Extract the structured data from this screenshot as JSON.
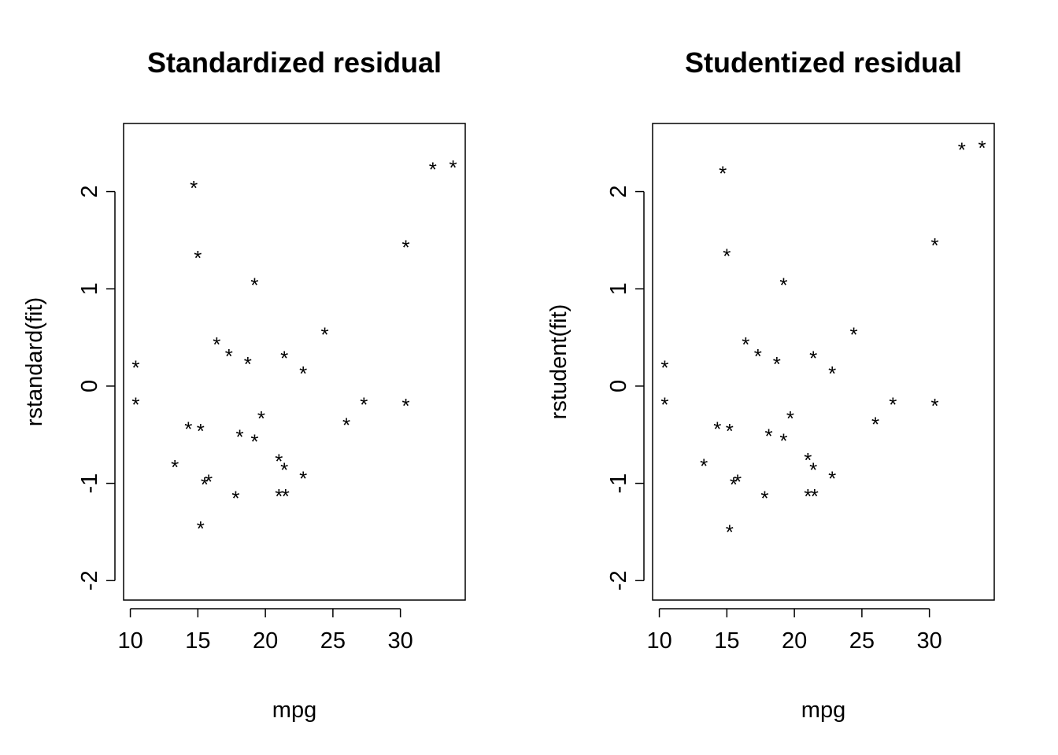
{
  "chart_data": [
    {
      "type": "scatter",
      "title": "Standardized residual",
      "xlabel": "mpg",
      "ylabel": "rstandard(fit)",
      "marker": "*",
      "xlim": [
        9.5,
        34.8
      ],
      "ylim": [
        -2.2,
        2.7
      ],
      "xticks": [
        10,
        15,
        20,
        25,
        30
      ],
      "yticks": [
        -2,
        -1,
        0,
        1,
        2
      ],
      "grid": false,
      "points": [
        {
          "x": 10.4,
          "y": 0.22
        },
        {
          "x": 10.4,
          "y": -0.16
        },
        {
          "x": 13.3,
          "y": -0.8
        },
        {
          "x": 14.3,
          "y": -0.41
        },
        {
          "x": 14.7,
          "y": 2.07
        },
        {
          "x": 15.0,
          "y": 1.35
        },
        {
          "x": 15.2,
          "y": -0.43
        },
        {
          "x": 15.2,
          "y": -1.43
        },
        {
          "x": 15.5,
          "y": -0.98
        },
        {
          "x": 15.8,
          "y": -0.95
        },
        {
          "x": 16.4,
          "y": 0.46
        },
        {
          "x": 17.3,
          "y": 0.34
        },
        {
          "x": 17.8,
          "y": -1.12
        },
        {
          "x": 18.1,
          "y": -0.49
        },
        {
          "x": 18.7,
          "y": 0.26
        },
        {
          "x": 19.2,
          "y": -0.54
        },
        {
          "x": 19.2,
          "y": 1.07
        },
        {
          "x": 19.7,
          "y": -0.3
        },
        {
          "x": 21.0,
          "y": -1.1
        },
        {
          "x": 21.0,
          "y": -0.74
        },
        {
          "x": 21.4,
          "y": -0.83
        },
        {
          "x": 21.4,
          "y": 0.32
        },
        {
          "x": 21.5,
          "y": -1.1
        },
        {
          "x": 22.8,
          "y": -0.92
        },
        {
          "x": 22.8,
          "y": 0.16
        },
        {
          "x": 24.4,
          "y": 0.56
        },
        {
          "x": 26.0,
          "y": -0.37
        },
        {
          "x": 27.3,
          "y": -0.16
        },
        {
          "x": 30.4,
          "y": 1.46
        },
        {
          "x": 30.4,
          "y": -0.17
        },
        {
          "x": 32.4,
          "y": 2.26
        },
        {
          "x": 33.9,
          "y": 2.28
        }
      ]
    },
    {
      "type": "scatter",
      "title": "Studentized residual",
      "xlabel": "mpg",
      "ylabel": "rstudent(fit)",
      "marker": "*",
      "xlim": [
        9.5,
        34.8
      ],
      "ylim": [
        -2.2,
        2.7
      ],
      "xticks": [
        10,
        15,
        20,
        25,
        30
      ],
      "yticks": [
        -2,
        -1,
        0,
        1,
        2
      ],
      "grid": false,
      "points": [
        {
          "x": 10.4,
          "y": 0.22
        },
        {
          "x": 10.4,
          "y": -0.16
        },
        {
          "x": 13.3,
          "y": -0.79
        },
        {
          "x": 14.3,
          "y": -0.41
        },
        {
          "x": 14.7,
          "y": 2.22
        },
        {
          "x": 15.0,
          "y": 1.37
        },
        {
          "x": 15.2,
          "y": -0.43
        },
        {
          "x": 15.2,
          "y": -1.47
        },
        {
          "x": 15.5,
          "y": -0.98
        },
        {
          "x": 15.8,
          "y": -0.95
        },
        {
          "x": 16.4,
          "y": 0.46
        },
        {
          "x": 17.3,
          "y": 0.34
        },
        {
          "x": 17.8,
          "y": -1.12
        },
        {
          "x": 18.1,
          "y": -0.48
        },
        {
          "x": 18.7,
          "y": 0.26
        },
        {
          "x": 19.2,
          "y": -0.53
        },
        {
          "x": 19.2,
          "y": 1.07
        },
        {
          "x": 19.7,
          "y": -0.3
        },
        {
          "x": 21.0,
          "y": -1.1
        },
        {
          "x": 21.0,
          "y": -0.73
        },
        {
          "x": 21.4,
          "y": -0.83
        },
        {
          "x": 21.4,
          "y": 0.32
        },
        {
          "x": 21.5,
          "y": -1.1
        },
        {
          "x": 22.8,
          "y": -0.92
        },
        {
          "x": 22.8,
          "y": 0.16
        },
        {
          "x": 24.4,
          "y": 0.56
        },
        {
          "x": 26.0,
          "y": -0.36
        },
        {
          "x": 27.3,
          "y": -0.16
        },
        {
          "x": 30.4,
          "y": 1.48
        },
        {
          "x": 30.4,
          "y": -0.17
        },
        {
          "x": 32.4,
          "y": 2.46
        },
        {
          "x": 33.9,
          "y": 2.48
        }
      ]
    }
  ]
}
